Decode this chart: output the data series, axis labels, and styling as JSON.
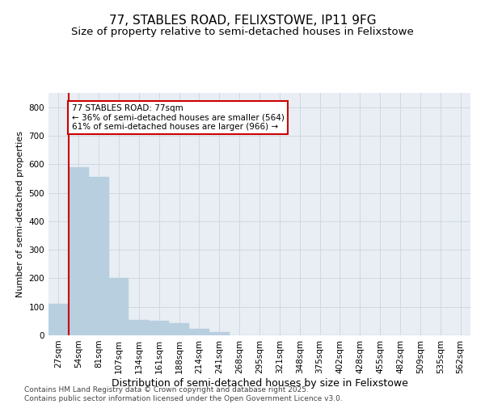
{
  "title1": "77, STABLES ROAD, FELIXSTOWE, IP11 9FG",
  "title2": "Size of property relative to semi-detached houses in Felixstowe",
  "xlabel": "Distribution of semi-detached houses by size in Felixstowe",
  "ylabel": "Number of semi-detached properties",
  "categories": [
    "27sqm",
    "54sqm",
    "81sqm",
    "107sqm",
    "134sqm",
    "161sqm",
    "188sqm",
    "214sqm",
    "241sqm",
    "268sqm",
    "295sqm",
    "321sqm",
    "348sqm",
    "375sqm",
    "402sqm",
    "428sqm",
    "455sqm",
    "482sqm",
    "509sqm",
    "535sqm",
    "562sqm"
  ],
  "values": [
    110,
    590,
    555,
    200,
    55,
    50,
    42,
    22,
    10,
    0,
    0,
    0,
    0,
    0,
    0,
    0,
    0,
    0,
    0,
    0,
    0
  ],
  "bar_color": "#b8cfe0",
  "bar_edge_color": "#b8cfe0",
  "grid_color": "#d0d8e0",
  "background_color": "#e8eef4",
  "annotation_line1": "77 STABLES ROAD: 77sqm",
  "annotation_line2": "← 36% of semi-detached houses are smaller (564)",
  "annotation_line3": "61% of semi-detached houses are larger (966) →",
  "annotation_box_color": "#ffffff",
  "annotation_box_edge_color": "#cc0000",
  "vline_color": "#cc0000",
  "vline_x_index": 1,
  "ylim": [
    0,
    850
  ],
  "yticks": [
    0,
    100,
    200,
    300,
    400,
    500,
    600,
    700,
    800
  ],
  "footer_line1": "Contains HM Land Registry data © Crown copyright and database right 2025.",
  "footer_line2": "Contains public sector information licensed under the Open Government Licence v3.0.",
  "title1_fontsize": 11,
  "title2_fontsize": 9.5,
  "xlabel_fontsize": 9,
  "ylabel_fontsize": 8,
  "tick_fontsize": 7.5,
  "annotation_fontsize": 7.5,
  "footer_fontsize": 6.5
}
